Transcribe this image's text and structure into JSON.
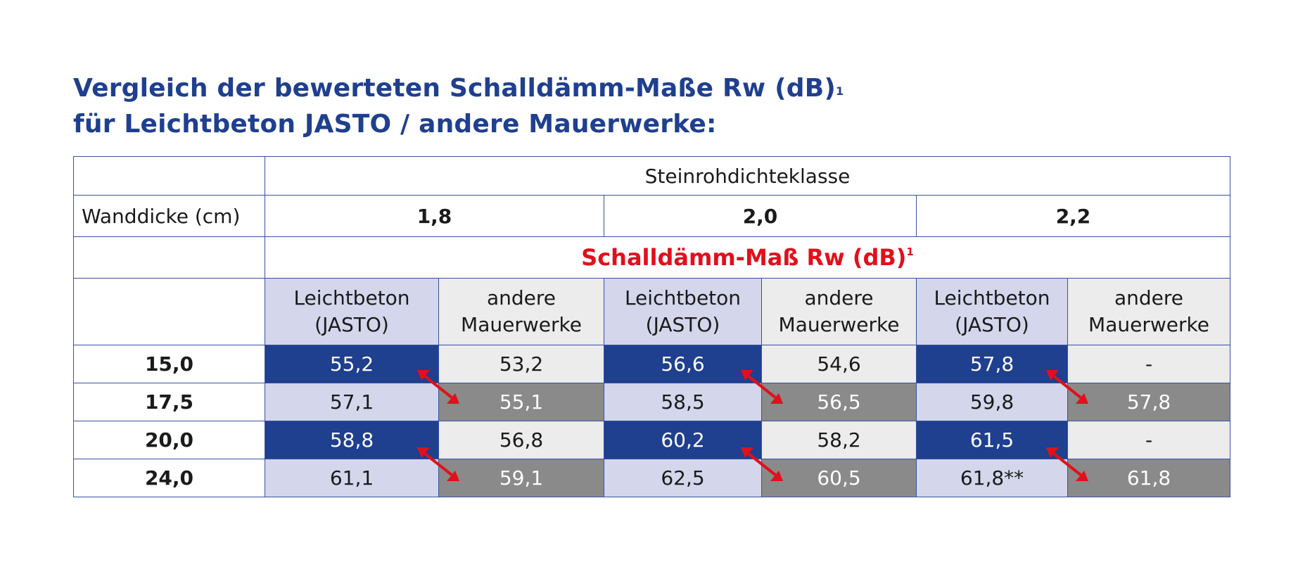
{
  "title": {
    "line1": "Vergleich der bewerteten Schalldämm-Maße Rw (dB)",
    "line1_sup": "1",
    "line2": "für Leichtbeton JASTO / andere Mauerwerke:"
  },
  "table": {
    "header_group": "Steinrohdichteklasse",
    "row_label": "Wanddicke (cm)",
    "density_classes": [
      "1,8",
      "2,0",
      "2,2"
    ],
    "measure_label": "Schalldämm-Maß Rw (dB)",
    "measure_sup": "1",
    "col_a": {
      "line1": "Leichtbeton",
      "line2": "(JASTO)"
    },
    "col_b": {
      "line1": "andere",
      "line2": "Mauerwerke"
    },
    "rows": [
      {
        "thickness": "15,0",
        "values": [
          "55,2",
          "53,2",
          "56,6",
          "54,6",
          "57,8",
          "-"
        ]
      },
      {
        "thickness": "17,5",
        "values": [
          "57,1",
          "55,1",
          "58,5",
          "56,5",
          "59,8",
          "57,8"
        ]
      },
      {
        "thickness": "20,0",
        "values": [
          "58,8",
          "56,8",
          "60,2",
          "58,2",
          "61,5",
          "-"
        ]
      },
      {
        "thickness": "24,0",
        "values": [
          "61,1",
          "59,1",
          "62,5",
          "60,5",
          "61,8**",
          "61,8"
        ]
      }
    ]
  },
  "colors": {
    "title": "#1f3f8f",
    "border": "#3752a0",
    "accent_red": "#e1101a",
    "navy_cell": "#1f3f8f",
    "lavender_cell": "#d4d6ec",
    "light_gray_cell": "#ececec",
    "dark_gray_cell": "#8a8a8a",
    "arrow": "#e1101a"
  },
  "icons": [
    "double-arrow-icon"
  ]
}
